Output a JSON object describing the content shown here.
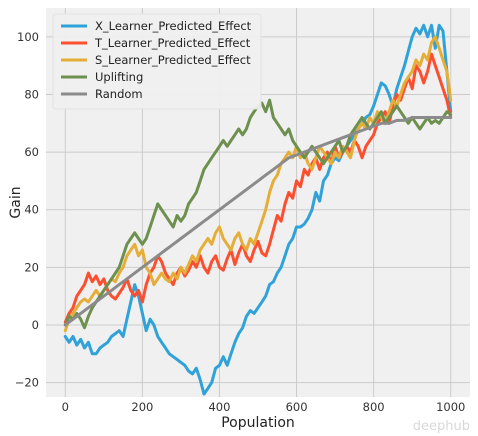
{
  "chart_data": {
    "type": "line",
    "xlabel": "Population",
    "ylabel": "Gain",
    "xlim": [
      -50,
      1050
    ],
    "ylim": [
      -25,
      110
    ],
    "xticks": [
      0,
      200,
      400,
      600,
      800,
      1000
    ],
    "yticks": [
      -20,
      0,
      20,
      40,
      60,
      80,
      100
    ],
    "grid": true,
    "legend_position": "top-left",
    "series": [
      {
        "name": "X_Learner_Predicted_Effect",
        "color": "#30a2da",
        "x": [
          0,
          10,
          20,
          30,
          40,
          50,
          60,
          70,
          80,
          90,
          100,
          110,
          120,
          130,
          140,
          150,
          160,
          170,
          180,
          190,
          200,
          210,
          220,
          230,
          240,
          250,
          260,
          270,
          280,
          290,
          300,
          310,
          320,
          330,
          340,
          350,
          360,
          370,
          380,
          390,
          400,
          410,
          420,
          430,
          440,
          450,
          460,
          470,
          480,
          490,
          500,
          510,
          520,
          530,
          540,
          550,
          560,
          570,
          580,
          590,
          600,
          610,
          620,
          630,
          640,
          650,
          660,
          670,
          680,
          690,
          700,
          710,
          720,
          730,
          740,
          750,
          760,
          770,
          780,
          790,
          800,
          810,
          820,
          830,
          840,
          850,
          860,
          870,
          880,
          890,
          900,
          910,
          920,
          930,
          940,
          950,
          960,
          970,
          980,
          990,
          1000
        ],
        "y": [
          -4,
          -6,
          -4,
          -7,
          -5,
          -8,
          -6,
          -10,
          -10,
          -8,
          -7,
          -6,
          -4,
          -3,
          -2,
          -4,
          2,
          8,
          14,
          10,
          4,
          -2,
          2,
          0,
          -4,
          -6,
          -8,
          -10,
          -11,
          -12,
          -13,
          -14,
          -16,
          -17,
          -15,
          -19,
          -24,
          -22,
          -20,
          -15,
          -14,
          -11,
          -14,
          -10,
          -6,
          -3,
          -1,
          3,
          5,
          4,
          6,
          8,
          10,
          14,
          15,
          18,
          20,
          24,
          28,
          30,
          34,
          34,
          35,
          37,
          40,
          46,
          43,
          50,
          52,
          56,
          58,
          57,
          60,
          62,
          64,
          66,
          68,
          70,
          72,
          73,
          76,
          80,
          84,
          83,
          80,
          76,
          82,
          86,
          90,
          95,
          100,
          103,
          101,
          104,
          100,
          104,
          96,
          104,
          102,
          88,
          74
        ]
      },
      {
        "name": "T_Learner_Predicted_Effect",
        "color": "#fc4f30",
        "x": [
          0,
          10,
          20,
          30,
          40,
          50,
          60,
          70,
          80,
          90,
          100,
          110,
          120,
          130,
          140,
          150,
          160,
          170,
          180,
          190,
          200,
          210,
          220,
          230,
          240,
          250,
          260,
          270,
          280,
          290,
          300,
          310,
          320,
          330,
          340,
          350,
          360,
          370,
          380,
          390,
          400,
          410,
          420,
          430,
          440,
          450,
          460,
          470,
          480,
          490,
          500,
          510,
          520,
          530,
          540,
          550,
          560,
          570,
          580,
          590,
          600,
          610,
          620,
          630,
          640,
          650,
          660,
          670,
          680,
          690,
          700,
          710,
          720,
          730,
          740,
          750,
          760,
          770,
          780,
          790,
          800,
          810,
          820,
          830,
          840,
          850,
          860,
          870,
          880,
          890,
          900,
          910,
          920,
          930,
          940,
          950,
          960,
          970,
          980,
          990,
          1000
        ],
        "y": [
          1,
          4,
          6,
          10,
          12,
          14,
          18,
          15,
          17,
          14,
          16,
          12,
          10,
          9,
          11,
          13,
          16,
          12,
          10,
          12,
          8,
          14,
          18,
          20,
          24,
          22,
          18,
          16,
          14,
          18,
          20,
          17,
          19,
          22,
          20,
          24,
          20,
          18,
          22,
          24,
          20,
          19,
          23,
          26,
          21,
          25,
          28,
          24,
          22,
          26,
          29,
          25,
          24,
          28,
          33,
          38,
          36,
          42,
          46,
          44,
          50,
          48,
          54,
          52,
          56,
          58,
          54,
          58,
          60,
          56,
          62,
          58,
          60,
          62,
          60,
          64,
          62,
          58,
          62,
          64,
          66,
          70,
          72,
          74,
          70,
          76,
          80,
          78,
          82,
          86,
          82,
          90,
          88,
          84,
          88,
          94,
          90,
          86,
          82,
          78,
          72
        ]
      },
      {
        "name": "S_Learner_Predicted_Effect",
        "color": "#e5ae38",
        "x": [
          0,
          10,
          20,
          30,
          40,
          50,
          60,
          70,
          80,
          90,
          100,
          110,
          120,
          130,
          140,
          150,
          160,
          170,
          180,
          190,
          200,
          210,
          220,
          230,
          240,
          250,
          260,
          270,
          280,
          290,
          300,
          310,
          320,
          330,
          340,
          350,
          360,
          370,
          380,
          390,
          400,
          410,
          420,
          430,
          440,
          450,
          460,
          470,
          480,
          490,
          500,
          510,
          520,
          530,
          540,
          550,
          560,
          570,
          580,
          590,
          600,
          610,
          620,
          630,
          640,
          650,
          660,
          670,
          680,
          690,
          700,
          710,
          720,
          730,
          740,
          750,
          760,
          770,
          780,
          790,
          800,
          810,
          820,
          830,
          840,
          850,
          860,
          870,
          880,
          890,
          900,
          910,
          920,
          930,
          940,
          950,
          960,
          970,
          980,
          990,
          1000
        ],
        "y": [
          -2,
          2,
          4,
          6,
          8,
          9,
          8,
          10,
          12,
          10,
          12,
          14,
          16,
          15,
          18,
          20,
          24,
          26,
          28,
          24,
          26,
          20,
          18,
          14,
          16,
          18,
          16,
          15,
          18,
          16,
          20,
          18,
          21,
          24,
          22,
          26,
          28,
          30,
          28,
          32,
          34,
          30,
          28,
          26,
          30,
          32,
          28,
          26,
          30,
          28,
          32,
          36,
          40,
          46,
          50,
          52,
          56,
          58,
          60,
          58,
          62,
          58,
          60,
          56,
          54,
          58,
          62,
          60,
          58,
          56,
          60,
          58,
          62,
          60,
          58,
          64,
          68,
          70,
          68,
          72,
          70,
          74,
          72,
          70,
          74,
          78,
          76,
          80,
          84,
          86,
          88,
          92,
          90,
          94,
          92,
          98,
          100,
          96,
          92,
          88,
          78
        ]
      },
      {
        "name": "Uplifting",
        "color": "#6d904f",
        "x": [
          0,
          10,
          20,
          30,
          40,
          50,
          60,
          70,
          80,
          90,
          100,
          110,
          120,
          130,
          140,
          150,
          160,
          170,
          180,
          190,
          200,
          210,
          220,
          230,
          240,
          250,
          260,
          270,
          280,
          290,
          300,
          310,
          320,
          330,
          340,
          350,
          360,
          370,
          380,
          390,
          400,
          410,
          420,
          430,
          440,
          450,
          460,
          470,
          480,
          490,
          500,
          510,
          520,
          530,
          540,
          550,
          560,
          570,
          580,
          590,
          600,
          610,
          620,
          630,
          640,
          650,
          660,
          670,
          680,
          690,
          700,
          710,
          720,
          730,
          740,
          750,
          760,
          770,
          780,
          790,
          800,
          810,
          820,
          830,
          840,
          850,
          860,
          870,
          880,
          890,
          900,
          910,
          920,
          930,
          940,
          950,
          960,
          970,
          980,
          990,
          1000
        ],
        "y": [
          0,
          3,
          2,
          4,
          2,
          -1,
          3,
          6,
          8,
          10,
          12,
          14,
          16,
          18,
          20,
          24,
          28,
          30,
          32,
          30,
          28,
          30,
          34,
          38,
          42,
          40,
          38,
          36,
          34,
          38,
          36,
          38,
          42,
          44,
          46,
          50,
          54,
          56,
          58,
          60,
          62,
          64,
          62,
          64,
          66,
          68,
          66,
          68,
          72,
          74,
          76,
          77,
          74,
          78,
          72,
          70,
          68,
          66,
          68,
          64,
          62,
          60,
          58,
          60,
          62,
          60,
          58,
          56,
          58,
          60,
          62,
          64,
          60,
          62,
          66,
          68,
          70,
          72,
          70,
          68,
          70,
          72,
          74,
          70,
          72,
          74,
          76,
          74,
          72,
          70,
          72,
          70,
          68,
          70,
          72,
          70,
          71,
          70,
          72,
          74,
          73
        ]
      },
      {
        "name": "Random",
        "color": "#8b8b8b",
        "x": [
          0,
          20,
          40,
          60,
          80,
          100,
          120,
          140,
          160,
          180,
          200,
          220,
          240,
          260,
          280,
          300,
          320,
          340,
          360,
          380,
          400,
          420,
          440,
          460,
          480,
          500,
          520,
          540,
          560,
          580,
          600,
          620,
          640,
          660,
          680,
          700,
          720,
          740,
          760,
          780,
          800,
          820,
          840,
          860,
          880,
          900,
          920,
          940,
          960,
          980,
          1000
        ],
        "y": [
          0,
          2,
          4,
          6,
          8,
          10,
          12,
          14,
          16,
          18,
          20,
          22,
          24,
          26,
          28,
          30,
          32,
          34,
          36,
          38,
          40,
          42,
          44,
          46,
          48,
          50,
          52,
          54,
          56,
          58,
          59,
          60,
          61,
          62,
          63,
          64,
          65,
          66,
          67,
          68,
          69,
          70,
          70,
          71,
          71,
          72,
          72,
          72,
          72,
          72,
          72
        ]
      }
    ]
  },
  "watermark": "deephub"
}
